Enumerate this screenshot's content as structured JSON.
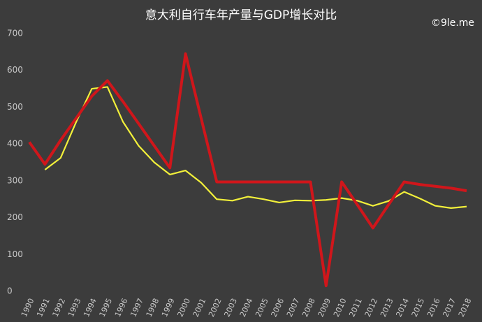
{
  "chart_data": {
    "type": "line",
    "title": "意大利自行车年产量与GDP增长对比",
    "watermark": "©9le.me",
    "categories": [
      "1990",
      "1991",
      "1992",
      "1993",
      "1994",
      "1995",
      "1996",
      "1997",
      "1998",
      "1999",
      "2000",
      "2001",
      "2002",
      "2003",
      "2004",
      "2005",
      "2006",
      "2007",
      "2008",
      "2009",
      "2010",
      "2011",
      "2012",
      "2013",
      "2014",
      "2015",
      "2016",
      "2017",
      "2018"
    ],
    "series": [
      {
        "color": "#d0161b",
        "values": [
          405,
          345,
          410,
          470,
          530,
          572,
          515,
          455,
          395,
          335,
          645,
          470,
          297,
          297,
          297,
          297,
          297,
          297,
          297,
          15,
          297,
          235,
          172,
          235,
          297,
          290,
          285,
          280,
          273
        ]
      },
      {
        "color": "#f2f03a",
        "values": [
          null,
          330,
          362,
          460,
          550,
          555,
          460,
          395,
          350,
          317,
          328,
          295,
          250,
          246,
          257,
          250,
          241,
          247,
          246,
          248,
          253,
          246,
          232,
          245,
          270,
          252,
          232,
          226,
          230
        ]
      }
    ],
    "ylim": [
      0,
      700
    ],
    "yticks": [
      0,
      100,
      200,
      300,
      400,
      500,
      600,
      700
    ],
    "grid": false
  }
}
